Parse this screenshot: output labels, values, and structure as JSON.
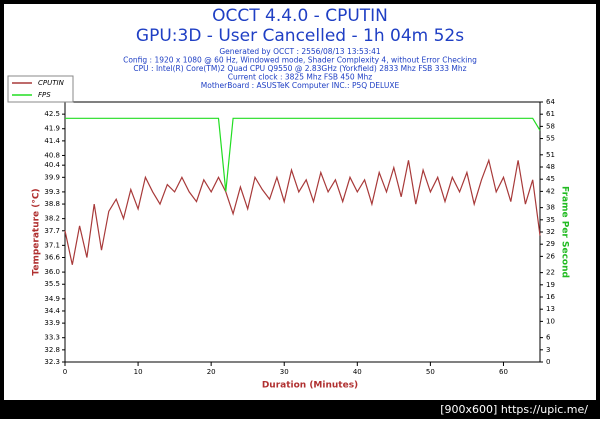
{
  "chart_data": {
    "type": "line",
    "title": "OCCT 4.4.0 - CPUTIN",
    "subtitle": "GPU:3D - User Cancelled - 1h 04m 52s",
    "info": [
      "Generated by OCCT : 2556/08/13 13:53:41",
      "Config : 1920 x 1080 @ 60 Hz, Windowed mode, Shader Complexity 4, without Error Checking",
      "CPU : Intel(R) Core(TM)2 Quad CPU Q9550 @ 2.83GHz (Yorkfield) 2833 Mhz FSB 333 Mhz",
      "Current clock : 3825 Mhz FSB 450 Mhz",
      "MotherBoard : ASUSTeK Computer INC.: P5Q DELUXE"
    ],
    "x_label": "Duration (Minutes)",
    "y_label": "Temperature (°C)",
    "y2_label": "Frame Per Second",
    "watermark": "[900x600] https://upic.me/",
    "legend": "top-left",
    "x": [
      0,
      1,
      2,
      3,
      4,
      5,
      6,
      7,
      8,
      9,
      10,
      11,
      12,
      13,
      14,
      15,
      16,
      17,
      18,
      19,
      20,
      21,
      22,
      23,
      24,
      25,
      26,
      27,
      28,
      29,
      30,
      31,
      32,
      33,
      34,
      35,
      36,
      37,
      38,
      39,
      40,
      41,
      42,
      43,
      44,
      45,
      46,
      47,
      48,
      49,
      50,
      51,
      52,
      53,
      54,
      55,
      56,
      57,
      58,
      59,
      60,
      61,
      62,
      63,
      64,
      65
    ],
    "series": [
      {
        "name": "CPUTIN",
        "color": "#a83a3a",
        "values": [
          37.7,
          36.3,
          37.9,
          36.6,
          38.8,
          36.9,
          38.5,
          39.0,
          38.2,
          39.4,
          38.6,
          39.9,
          39.3,
          38.8,
          39.6,
          39.3,
          39.9,
          39.3,
          38.9,
          39.8,
          39.3,
          39.9,
          39.3,
          38.4,
          39.5,
          38.6,
          39.9,
          39.4,
          39.0,
          39.9,
          38.9,
          40.2,
          39.3,
          39.8,
          38.9,
          40.1,
          39.3,
          39.8,
          38.9,
          39.9,
          39.3,
          39.8,
          38.8,
          40.1,
          39.3,
          40.3,
          39.1,
          40.6,
          38.8,
          40.2,
          39.3,
          39.9,
          38.9,
          39.9,
          39.3,
          40.1,
          38.8,
          39.8,
          40.6,
          39.3,
          39.9,
          38.9,
          40.6,
          38.8,
          39.8,
          37.5
        ]
      },
      {
        "name": "FPS",
        "color": "#22dd22",
        "axis": "y2",
        "values": [
          60,
          60,
          60,
          60,
          60,
          60,
          60,
          60,
          60,
          60,
          60,
          60,
          60,
          60,
          60,
          60,
          60,
          60,
          60,
          60,
          60,
          60,
          42,
          60,
          60,
          60,
          60,
          60,
          60,
          60,
          60,
          60,
          60,
          60,
          60,
          60,
          60,
          60,
          60,
          60,
          60,
          60,
          60,
          60,
          60,
          60,
          60,
          60,
          60,
          60,
          60,
          60,
          60,
          60,
          60,
          60,
          60,
          60,
          60,
          60,
          60,
          60,
          60,
          60,
          60,
          57
        ]
      }
    ],
    "xlim": [
      0,
      65
    ],
    "xticks": [
      0,
      10,
      20,
      30,
      40,
      50,
      60
    ],
    "ylim": [
      32.3,
      43.0
    ],
    "yticks": [
      32.3,
      32.8,
      33.3,
      33.9,
      34.4,
      34.9,
      35.5,
      {
        "value": 36,
        "label": "36.0"
      },
      36.6,
      37.1,
      37.7,
      38.2,
      38.8,
      39.3,
      39.9,
      40.4,
      40.8,
      41.4,
      41.9,
      42.5
    ],
    "y2lim": [
      0,
      64
    ],
    "y2ticks": [
      0,
      3,
      6,
      10,
      13,
      16,
      19,
      22,
      26,
      29,
      32,
      35,
      38,
      42,
      45,
      48,
      51,
      55,
      58,
      61,
      64
    ],
    "grid": false
  }
}
